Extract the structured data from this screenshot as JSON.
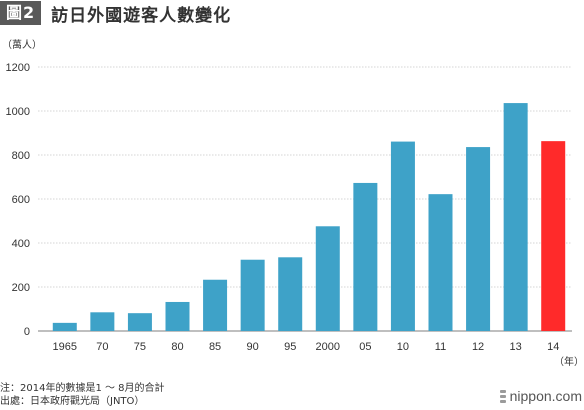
{
  "header": {
    "badge": "圖2",
    "title": "訪日外國遊客人數變化"
  },
  "chart_data": {
    "type": "bar",
    "title": "訪日外國遊客人數變化",
    "ylabel": "（萬人）",
    "xlabel": "（年）",
    "ylim": [
      0,
      1200
    ],
    "yticks": [
      "0",
      "200",
      "400",
      "600",
      "800",
      "1000",
      "1200"
    ],
    "grid": true,
    "categories": [
      "1965",
      "70",
      "75",
      "80",
      "85",
      "90",
      "95",
      "2000",
      "05",
      "10",
      "11",
      "12",
      "13",
      "14"
    ],
    "values": [
      37,
      85,
      81,
      132,
      233,
      324,
      335,
      476,
      673,
      861,
      622,
      836,
      1036,
      863
    ],
    "colors": {
      "default": "#3ea2c8",
      "highlight": "#ff2a2a",
      "grid": "#c8c8c8",
      "axis": "#999999"
    },
    "highlight_index": 13
  },
  "notes": {
    "note": "注：2014年的數據是1 ～ 8月的合計",
    "source": "出處：日本政府觀光局（JNTO）"
  },
  "brand": {
    "name": "nippon.com",
    "icon": "nippon-logo-icon"
  }
}
